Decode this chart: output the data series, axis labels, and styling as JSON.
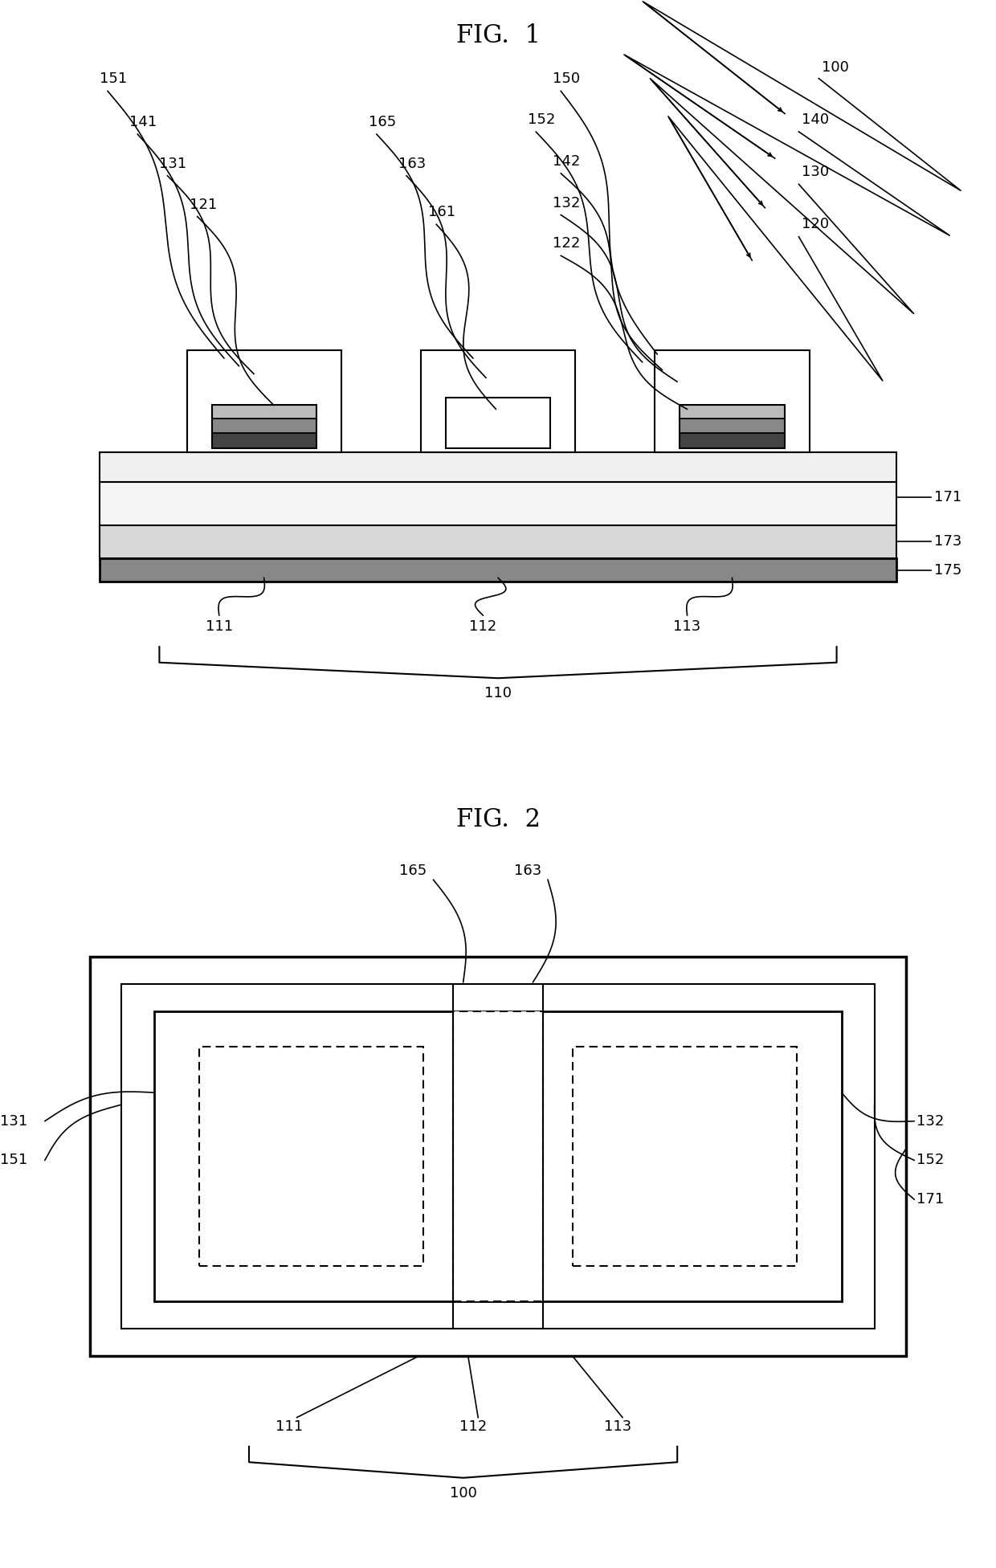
{
  "fig_title1": "FIG.  1",
  "fig_title2": "FIG.  2",
  "bg_color": "#ffffff",
  "line_color": "#000000",
  "label_fontsize": 13,
  "title_fontsize": 22
}
